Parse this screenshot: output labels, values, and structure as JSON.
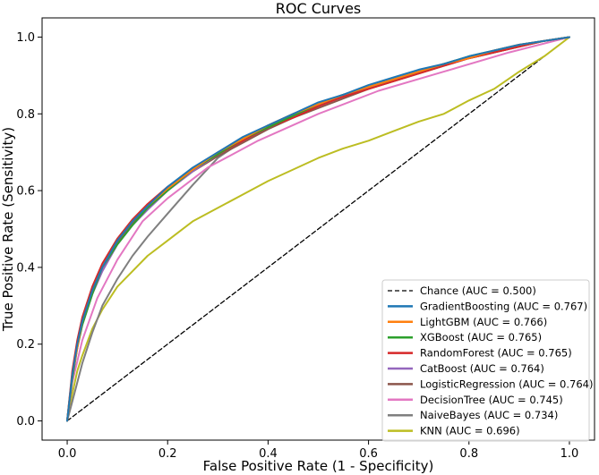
{
  "chart_data": {
    "type": "line",
    "title": "ROC Curves",
    "xlabel": "False Positive Rate (1 - Specificity)",
    "ylabel": "True Positive Rate (Sensitivity)",
    "xlim": [
      -0.05,
      1.05
    ],
    "ylim": [
      -0.05,
      1.05
    ],
    "xticks": [
      "0.0",
      "0.2",
      "0.4",
      "0.6",
      "0.8",
      "1.0"
    ],
    "yticks": [
      "0.0",
      "0.2",
      "0.4",
      "0.6",
      "0.8",
      "1.0"
    ],
    "xtick_values": [
      0,
      0.2,
      0.4,
      0.6,
      0.8,
      1.0
    ],
    "ytick_values": [
      0,
      0.2,
      0.4,
      0.6,
      0.8,
      1.0
    ],
    "grid": false,
    "legend_position": "lower-right",
    "series": [
      {
        "name": "Chance (AUC = 0.500)",
        "label": "Chance (AUC = 0.500)",
        "color": "#000000",
        "dashed": true,
        "x": [
          0,
          1
        ],
        "y": [
          0,
          1
        ]
      },
      {
        "name": "GradientBoosting",
        "label": "GradientBoosting (AUC = 0.767)",
        "color": "#1f77b4",
        "dashed": false,
        "x": [
          0,
          0.01,
          0.02,
          0.03,
          0.05,
          0.07,
          0.1,
          0.13,
          0.16,
          0.2,
          0.25,
          0.3,
          0.35,
          0.4,
          0.45,
          0.5,
          0.55,
          0.6,
          0.65,
          0.7,
          0.75,
          0.8,
          0.85,
          0.9,
          0.95,
          1.0
        ],
        "y": [
          0,
          0.12,
          0.2,
          0.26,
          0.34,
          0.4,
          0.47,
          0.52,
          0.56,
          0.61,
          0.66,
          0.7,
          0.74,
          0.77,
          0.8,
          0.83,
          0.85,
          0.875,
          0.895,
          0.915,
          0.93,
          0.95,
          0.965,
          0.98,
          0.99,
          1.0
        ]
      },
      {
        "name": "LightGBM",
        "label": "LightGBM (AUC = 0.766)",
        "color": "#ff7f0e",
        "dashed": false,
        "x": [
          0,
          0.01,
          0.02,
          0.03,
          0.05,
          0.07,
          0.1,
          0.13,
          0.16,
          0.2,
          0.25,
          0.3,
          0.35,
          0.4,
          0.45,
          0.5,
          0.55,
          0.6,
          0.65,
          0.7,
          0.75,
          0.8,
          0.85,
          0.9,
          0.95,
          1.0
        ],
        "y": [
          0,
          0.12,
          0.19,
          0.26,
          0.34,
          0.4,
          0.47,
          0.52,
          0.56,
          0.605,
          0.655,
          0.7,
          0.735,
          0.77,
          0.8,
          0.825,
          0.85,
          0.87,
          0.89,
          0.91,
          0.93,
          0.945,
          0.965,
          0.98,
          0.99,
          1.0
        ]
      },
      {
        "name": "XGBoost",
        "label": "XGBoost (AUC = 0.765)",
        "color": "#2ca02c",
        "dashed": false,
        "x": [
          0,
          0.01,
          0.02,
          0.03,
          0.05,
          0.07,
          0.1,
          0.13,
          0.16,
          0.2,
          0.25,
          0.3,
          0.35,
          0.4,
          0.45,
          0.5,
          0.55,
          0.6,
          0.65,
          0.7,
          0.75,
          0.8,
          0.85,
          0.9,
          0.95,
          1.0
        ],
        "y": [
          0,
          0.11,
          0.19,
          0.25,
          0.33,
          0.4,
          0.46,
          0.51,
          0.555,
          0.6,
          0.655,
          0.695,
          0.735,
          0.765,
          0.795,
          0.825,
          0.85,
          0.87,
          0.89,
          0.91,
          0.93,
          0.95,
          0.965,
          0.98,
          0.99,
          1.0
        ]
      },
      {
        "name": "RandomForest",
        "label": "RandomForest (AUC = 0.765)",
        "color": "#d62728",
        "dashed": false,
        "x": [
          0,
          0.01,
          0.02,
          0.03,
          0.05,
          0.07,
          0.1,
          0.13,
          0.16,
          0.2,
          0.25,
          0.3,
          0.35,
          0.4,
          0.45,
          0.5,
          0.55,
          0.6,
          0.65,
          0.7,
          0.75,
          0.8,
          0.85,
          0.9,
          0.95,
          1.0
        ],
        "y": [
          0,
          0.13,
          0.21,
          0.27,
          0.35,
          0.41,
          0.475,
          0.525,
          0.565,
          0.61,
          0.655,
          0.695,
          0.73,
          0.765,
          0.79,
          0.82,
          0.845,
          0.865,
          0.885,
          0.905,
          0.925,
          0.945,
          0.96,
          0.975,
          0.99,
          1.0
        ]
      },
      {
        "name": "CatBoost",
        "label": "CatBoost (AUC = 0.764)",
        "color": "#9467bd",
        "dashed": false,
        "x": [
          0,
          0.01,
          0.02,
          0.03,
          0.05,
          0.07,
          0.1,
          0.13,
          0.16,
          0.2,
          0.25,
          0.3,
          0.35,
          0.4,
          0.45,
          0.5,
          0.55,
          0.6,
          0.65,
          0.7,
          0.75,
          0.8,
          0.85,
          0.9,
          0.95,
          1.0
        ],
        "y": [
          0,
          0.11,
          0.19,
          0.25,
          0.33,
          0.39,
          0.46,
          0.51,
          0.55,
          0.6,
          0.65,
          0.695,
          0.73,
          0.765,
          0.795,
          0.82,
          0.845,
          0.87,
          0.89,
          0.91,
          0.93,
          0.945,
          0.965,
          0.98,
          0.99,
          1.0
        ]
      },
      {
        "name": "LogisticRegression",
        "label": "LogisticRegression (AUC = 0.764)",
        "color": "#8c564b",
        "dashed": false,
        "x": [
          0,
          0.01,
          0.02,
          0.03,
          0.05,
          0.07,
          0.1,
          0.13,
          0.16,
          0.2,
          0.25,
          0.3,
          0.35,
          0.4,
          0.45,
          0.5,
          0.55,
          0.6,
          0.65,
          0.7,
          0.75,
          0.8,
          0.85,
          0.9,
          0.95,
          1.0
        ],
        "y": [
          0,
          0.12,
          0.2,
          0.26,
          0.34,
          0.4,
          0.465,
          0.515,
          0.555,
          0.6,
          0.65,
          0.69,
          0.725,
          0.76,
          0.79,
          0.815,
          0.84,
          0.865,
          0.885,
          0.905,
          0.925,
          0.945,
          0.96,
          0.975,
          0.99,
          1.0
        ]
      },
      {
        "name": "DecisionTree",
        "label": "DecisionTree (AUC = 0.745)",
        "color": "#e377c2",
        "dashed": false,
        "x": [
          0,
          0.01,
          0.03,
          0.06,
          0.1,
          0.15,
          0.2,
          0.28,
          0.38,
          0.5,
          0.62,
          0.75,
          0.88,
          1.0
        ],
        "y": [
          0,
          0.1,
          0.21,
          0.32,
          0.42,
          0.52,
          0.58,
          0.66,
          0.73,
          0.8,
          0.86,
          0.91,
          0.96,
          1.0
        ]
      },
      {
        "name": "NaiveBayes",
        "label": "NaiveBayes (AUC = 0.734)",
        "color": "#7f7f7f",
        "dashed": false,
        "x": [
          0,
          0.01,
          0.02,
          0.03,
          0.05,
          0.07,
          0.1,
          0.13,
          0.16,
          0.2,
          0.25,
          0.3,
          0.35,
          0.4,
          0.45,
          0.5,
          0.55,
          0.6,
          0.65,
          0.7,
          0.75,
          0.8,
          0.85,
          0.9,
          0.95,
          1.0
        ],
        "y": [
          0,
          0.05,
          0.1,
          0.15,
          0.23,
          0.3,
          0.37,
          0.43,
          0.48,
          0.54,
          0.615,
          0.685,
          0.73,
          0.77,
          0.8,
          0.825,
          0.85,
          0.87,
          0.89,
          0.91,
          0.93,
          0.945,
          0.96,
          0.975,
          0.99,
          1.0
        ]
      },
      {
        "name": "KNN",
        "label": "KNN (AUC = 0.696)",
        "color": "#bcbd22",
        "dashed": false,
        "x": [
          0,
          0.01,
          0.02,
          0.03,
          0.05,
          0.07,
          0.1,
          0.13,
          0.16,
          0.2,
          0.25,
          0.3,
          0.35,
          0.4,
          0.45,
          0.5,
          0.55,
          0.6,
          0.65,
          0.7,
          0.75,
          0.8,
          0.85,
          0.9,
          0.95,
          1.0
        ],
        "y": [
          0,
          0.07,
          0.13,
          0.17,
          0.24,
          0.29,
          0.35,
          0.39,
          0.43,
          0.47,
          0.52,
          0.555,
          0.59,
          0.625,
          0.655,
          0.685,
          0.71,
          0.73,
          0.755,
          0.78,
          0.8,
          0.835,
          0.865,
          0.91,
          0.95,
          1.0
        ]
      }
    ]
  }
}
